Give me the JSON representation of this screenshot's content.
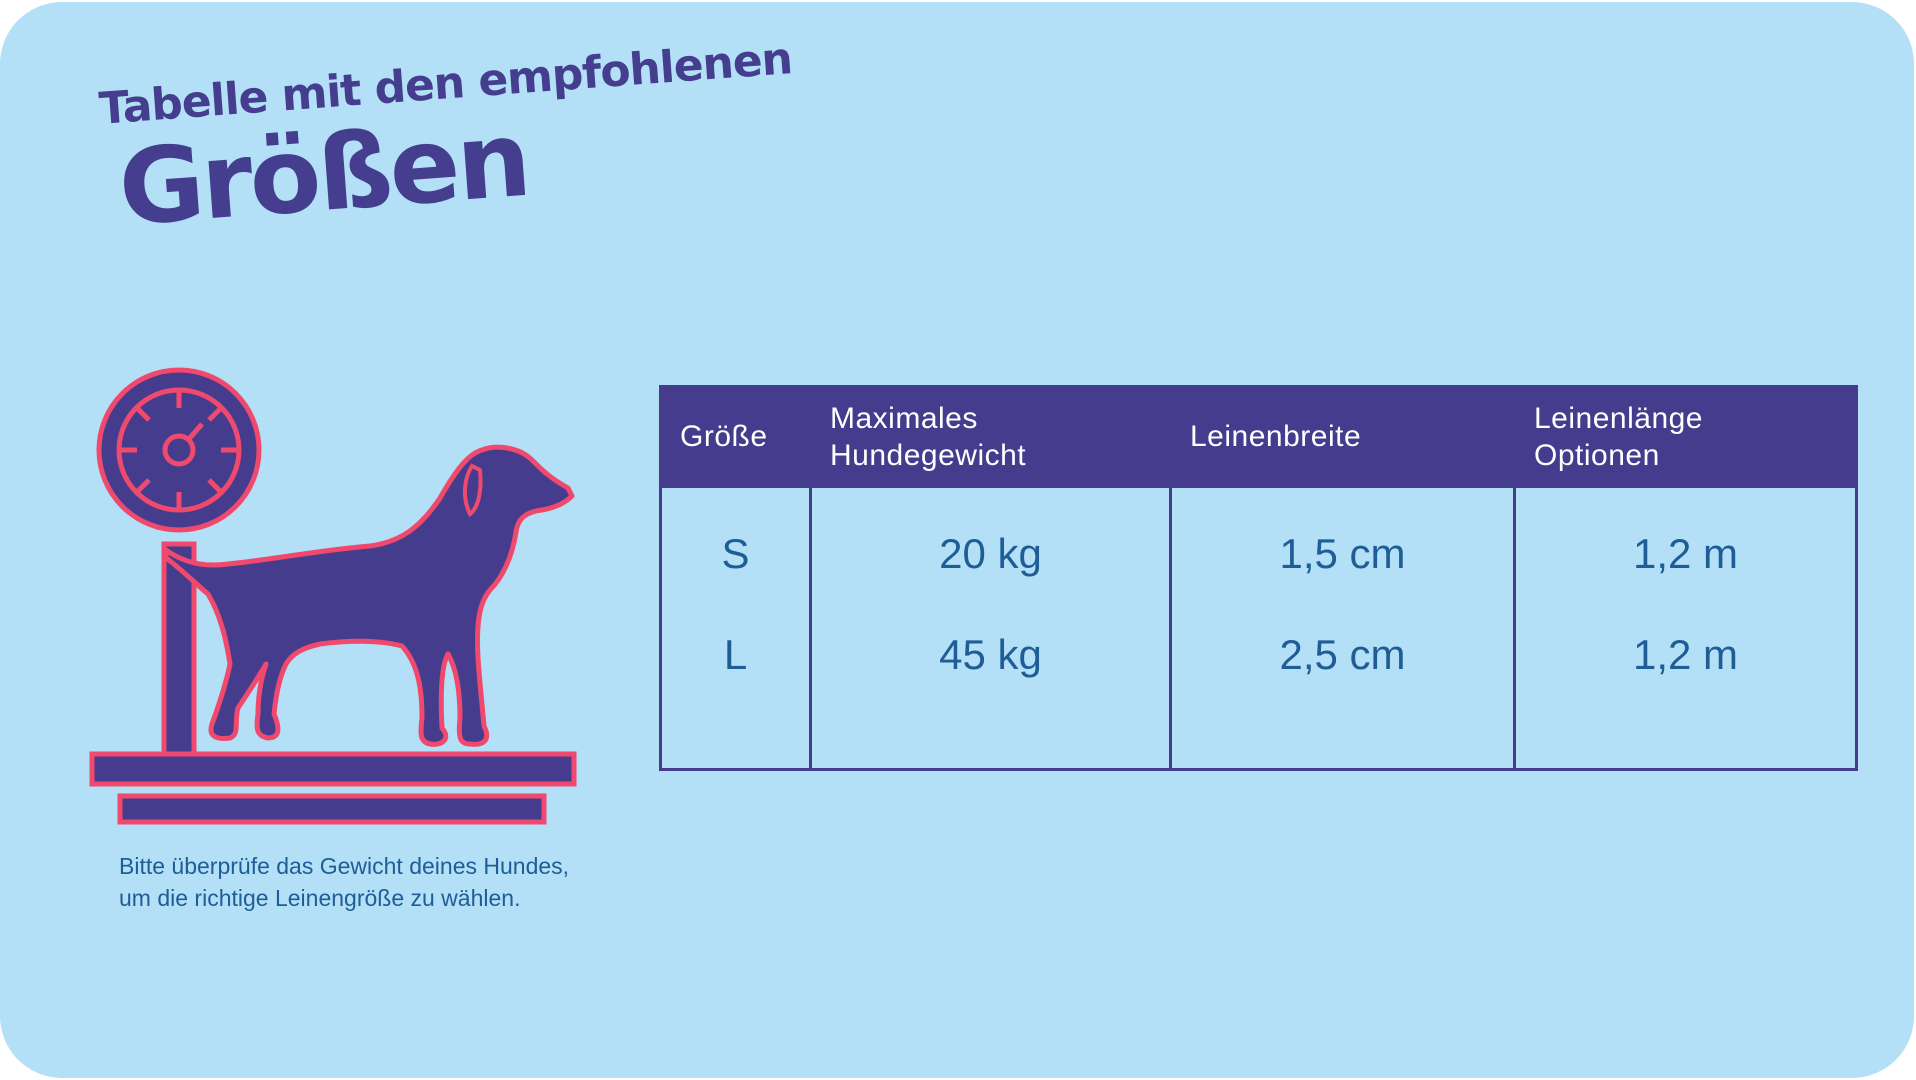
{
  "title": {
    "line1": "Tabelle mit den empfohlenen",
    "line2": "Größen"
  },
  "illustration": {
    "icon": "dog-on-scale-icon",
    "colors": {
      "fill": "#463c8e",
      "outline": "#ef4a6d"
    }
  },
  "note": {
    "line1": "Bitte überprüfe das Gewicht deines Hundes,",
    "line2": "um die richtige Leinengröße zu wählen."
  },
  "table": {
    "headers": [
      "Größe",
      "Maximales Hundegewicht",
      "Leinenbreite",
      "Leinenlänge Optionen"
    ],
    "rows": [
      [
        "S",
        "20 kg",
        "1,5 cm",
        "1,2 m"
      ],
      [
        "L",
        "45 kg",
        "2,5 cm",
        "1,2 m"
      ]
    ]
  },
  "colors": {
    "background": "#b3e0f6",
    "accent": "#463c8e",
    "text": "#1f5d97",
    "highlight": "#ef4a6d"
  }
}
